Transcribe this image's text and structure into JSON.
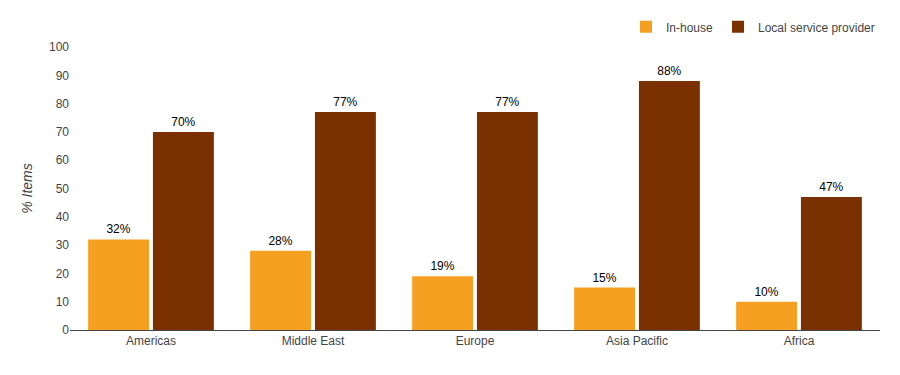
{
  "chart_data": {
    "type": "bar",
    "ylabel": "% Items",
    "categories": [
      "Americas",
      "Middle East",
      "Europe",
      "Asia Pacific",
      "Africa"
    ],
    "series": [
      {
        "name": "In-house",
        "color": "#F5A020",
        "values": [
          32,
          28,
          19,
          15,
          10
        ],
        "value_labels": [
          "32%",
          "28%",
          "19%",
          "15%",
          "10%"
        ]
      },
      {
        "name": "Local service provider",
        "color": "#7B3000",
        "values": [
          70,
          77,
          77,
          88,
          47
        ],
        "value_labels": [
          "70%",
          "77%",
          "77%",
          "88%",
          "47%"
        ]
      }
    ],
    "ylim": [
      0,
      100
    ],
    "yticks": [
      0,
      10,
      20,
      30,
      40,
      50,
      60,
      70,
      80,
      90,
      100
    ],
    "grid": false,
    "legend": "upper right",
    "data_labels": true
  }
}
